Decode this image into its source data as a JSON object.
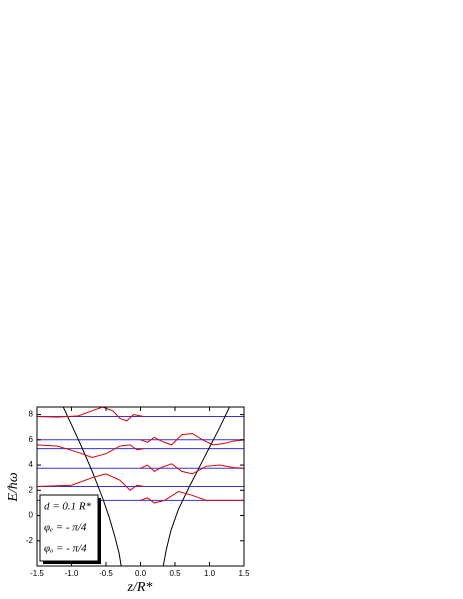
{
  "chart_data": {
    "type": "line",
    "x_label": "z/R*",
    "y_label": "E/ħω",
    "xlim": [
      -1.5,
      1.5
    ],
    "ylim": [
      -4,
      8.6
    ],
    "xticks": [
      -1.5,
      {
        "value": -1,
        "label": "-1.0"
      },
      -0.5,
      {
        "value": 0,
        "label": "0.0"
      },
      0.5,
      {
        "value": 1,
        "label": "1.0"
      },
      1.5
    ],
    "yticks": [
      -2,
      0,
      2,
      4,
      6,
      8
    ],
    "levels": [
      7.85,
      6,
      5.3,
      3.75,
      2.3,
      1.2
    ],
    "level_color": "#3333dd",
    "annotations": [
      "d = 0.1 R*",
      "φₑ = - π/4",
      "φₒ = - π/4"
    ],
    "series": [
      {
        "color": "#000000",
        "x": [
          -1.12,
          -1.0,
          -0.85,
          -0.7,
          -0.55,
          -0.45,
          -0.37,
          -0.31,
          -0.28
        ],
        "values": [
          8.6,
          7.2,
          5.4,
          3.5,
          1.4,
          -0.2,
          -1.7,
          -3.0,
          -4
        ]
      },
      {
        "color": "#000000",
        "x": [
          0.33,
          0.37,
          0.44,
          0.55,
          0.7,
          0.85,
          1.0,
          1.15,
          1.29
        ],
        "values": [
          -4,
          -2.8,
          -1.2,
          0.5,
          2.2,
          3.8,
          5.4,
          7.0,
          8.6
        ]
      },
      {
        "color": "#dd0000",
        "x": [
          -1.5,
          -1.2,
          -0.9,
          -0.7,
          -0.55,
          -0.4,
          -0.3,
          -0.2,
          -0.1,
          0,
          0.05
        ],
        "values": [
          7.85,
          7.8,
          7.9,
          8.3,
          8.6,
          8.3,
          7.7,
          7.5,
          8.0,
          7.9,
          7.85
        ]
      },
      {
        "color": "#dd0000",
        "x": [
          0,
          0.1,
          0.2,
          0.3,
          0.45,
          0.6,
          0.75,
          0.9,
          1.05,
          1.2,
          1.35,
          1.5
        ],
        "values": [
          6,
          5.8,
          6.2,
          5.9,
          5.6,
          6.4,
          6.5,
          6.0,
          5.6,
          5.7,
          5.9,
          6
        ]
      },
      {
        "color": "#dd0000",
        "x": [
          -1.5,
          -1.2,
          -0.9,
          -0.7,
          -0.5,
          -0.3,
          -0.15,
          -0.05,
          0.05
        ],
        "values": [
          5.6,
          5.5,
          5.0,
          4.6,
          4.9,
          5.5,
          5.6,
          5.2,
          5.3
        ]
      },
      {
        "color": "#dd0000",
        "x": [
          0,
          0.1,
          0.2,
          0.3,
          0.45,
          0.6,
          0.75,
          0.95,
          1.15,
          1.35,
          1.5
        ],
        "values": [
          3.75,
          4.0,
          3.5,
          3.8,
          4.1,
          3.5,
          3.3,
          3.9,
          4.0,
          3.8,
          3.75
        ]
      },
      {
        "color": "#dd0000",
        "x": [
          -1.5,
          -1.0,
          -0.7,
          -0.5,
          -0.3,
          -0.15,
          -0.05,
          0.05
        ],
        "values": [
          2.3,
          2.4,
          3.0,
          3.3,
          2.8,
          2.0,
          2.4,
          2.3
        ]
      },
      {
        "color": "#dd0000",
        "x": [
          0,
          0.1,
          0.2,
          0.35,
          0.55,
          0.75,
          0.95,
          1.5
        ],
        "values": [
          1.2,
          1.4,
          1.0,
          1.2,
          1.9,
          1.6,
          1.2,
          1.2
        ]
      }
    ]
  }
}
